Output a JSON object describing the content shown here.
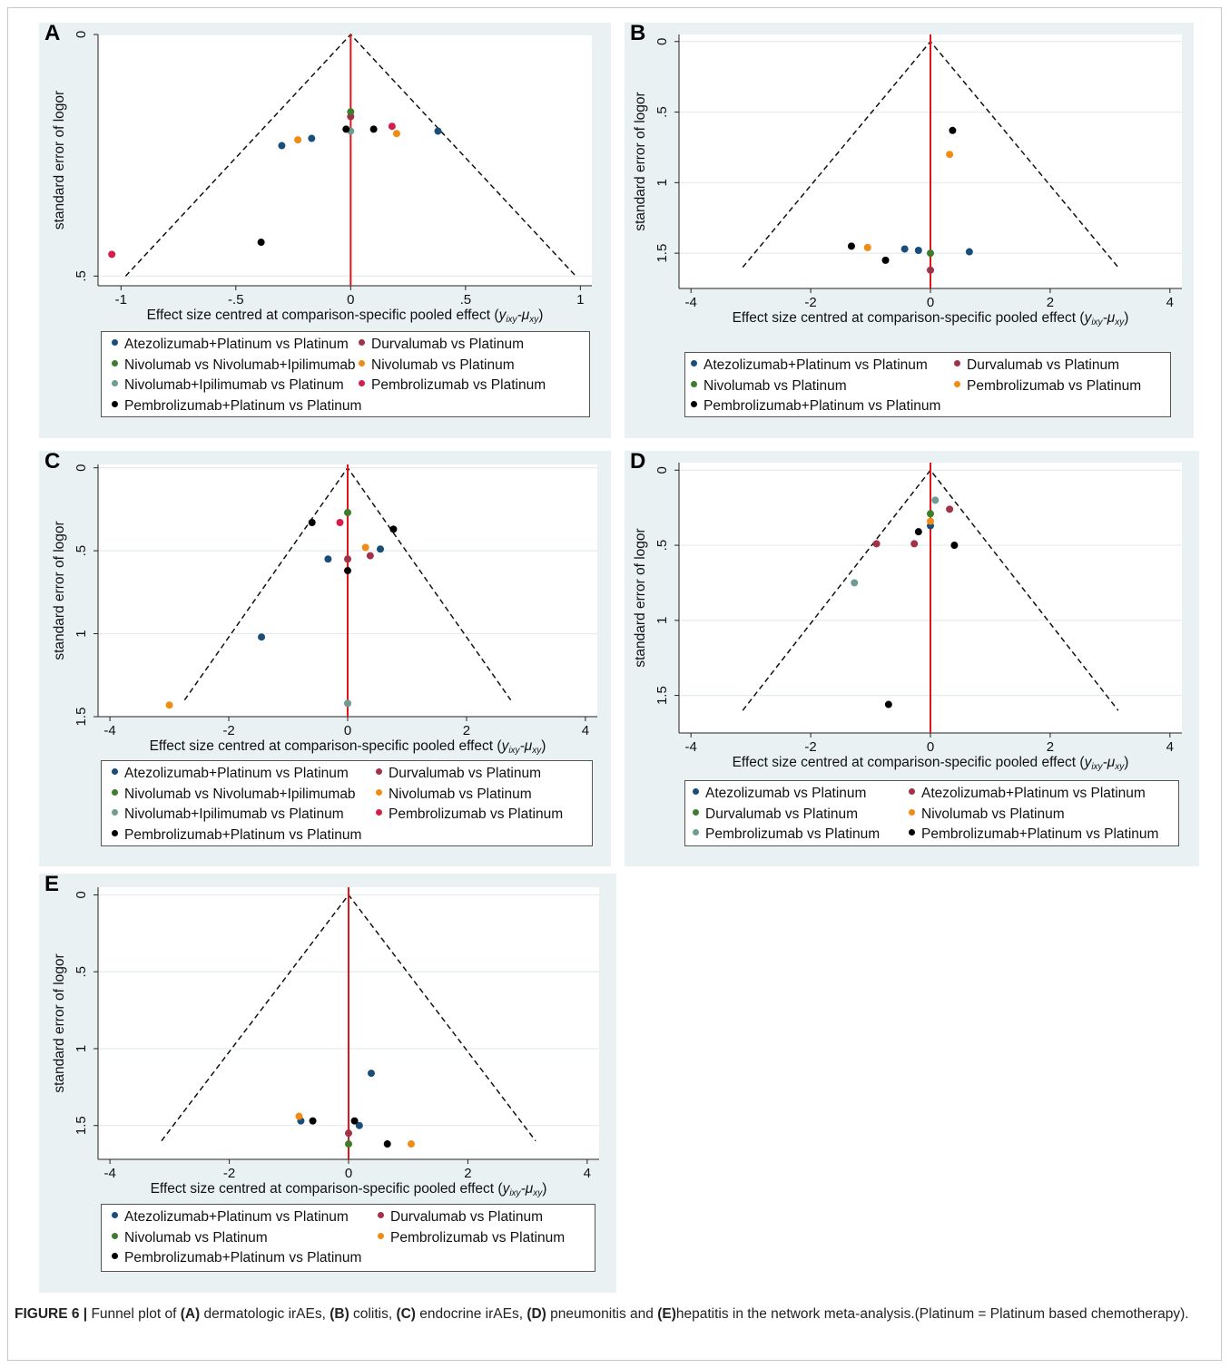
{
  "figure": {
    "caption_label": "FIGURE 6 |",
    "caption_segments": [
      {
        "t": " Funnel plot of ",
        "b": false
      },
      {
        "t": "(A)",
        "b": true
      },
      {
        "t": " dermatologic irAEs, ",
        "b": false
      },
      {
        "t": "(B)",
        "b": true
      },
      {
        "t": " colitis, ",
        "b": false
      },
      {
        "t": "(C)",
        "b": true
      },
      {
        "t": " endocrine irAEs, ",
        "b": false
      },
      {
        "t": "(D)",
        "b": true
      },
      {
        "t": " pneumonitis and ",
        "b": false
      },
      {
        "t": "(E)",
        "b": true
      },
      {
        "t": "hepatitis in the network meta-analysis.(Platinum = Platinum based chemotherapy).",
        "b": false
      }
    ]
  },
  "colors": {
    "navy": "#1a4e7a",
    "maroon": "#a23247",
    "green": "#3c7d2e",
    "orange": "#f08c14",
    "teal": "#6e9c94",
    "crimson": "#d41f4a",
    "black": "#000000",
    "panel_bg": "#e9f1f3",
    "red_line": "#e0161b"
  },
  "chart_data": [
    {
      "panel": "A",
      "type": "scatter",
      "ylabel": "standard error of logor",
      "xlabel_main": "Effect size centred at comparison-specific pooled effect (",
      "xlabel_math": "y",
      "xlabel_sub": "ixy",
      "xlabel_mid": "-μ",
      "xlabel_sub2": "xy",
      "xlabel_end": ")",
      "xlim": [
        -1.1,
        1.05
      ],
      "ylim": [
        0,
        0.52
      ],
      "y_reversed": true,
      "xticks": [
        "-1",
        "-.5",
        "0",
        ".5",
        "1"
      ],
      "xtick_values": [
        -1,
        -0.5,
        0,
        0.5,
        1
      ],
      "yticks": [
        "0",
        ".5"
      ],
      "ytick_values": [
        0,
        0.5
      ],
      "funnel_se_max": 0.5,
      "series": [
        {
          "name": "Atezolizumab+Platinum vs Platinum",
          "color": "navy",
          "points": [
            [
              -0.3,
              0.23
            ],
            [
              -0.17,
              0.215
            ],
            [
              0.38,
              0.2
            ]
          ]
        },
        {
          "name": "Durvalumab vs Platinum",
          "color": "maroon",
          "points": [
            [
              0.0,
              0.17
            ]
          ]
        },
        {
          "name": "Nivolumab vs Nivolumab+Ipilimumab",
          "color": "green",
          "points": [
            [
              0.0,
              0.16
            ]
          ]
        },
        {
          "name": "Nivolumab vs Platinum",
          "color": "orange",
          "points": [
            [
              -0.23,
              0.218
            ],
            [
              0.2,
              0.205
            ]
          ]
        },
        {
          "name": "Nivolumab+Ipilimumab vs Platinum",
          "color": "teal",
          "points": [
            [
              0.0,
              0.2
            ]
          ]
        },
        {
          "name": "Pembrolizumab vs Platinum",
          "color": "crimson",
          "points": [
            [
              0.18,
              0.19
            ],
            [
              -1.04,
              0.455
            ]
          ]
        },
        {
          "name": "Pembrolizumab+Platinum vs Platinum",
          "color": "black",
          "points": [
            [
              -0.02,
              0.196
            ],
            [
              0.1,
              0.196
            ],
            [
              -0.39,
              0.43
            ]
          ]
        }
      ]
    },
    {
      "panel": "B",
      "type": "scatter",
      "ylabel": "standard error of logor",
      "xlabel_main": "Effect size centred at comparison-specific pooled effect (",
      "xlabel_math": "y",
      "xlabel_sub": "ixy",
      "xlabel_mid": "-μ",
      "xlabel_sub2": "xy",
      "xlabel_end": ")",
      "xlim": [
        -4.2,
        4.2
      ],
      "ylim": [
        -0.05,
        1.75
      ],
      "y_reversed": true,
      "xticks": [
        "-4",
        "-2",
        "0",
        "2",
        "4"
      ],
      "xtick_values": [
        -4,
        -2,
        0,
        2,
        4
      ],
      "yticks": [
        "0",
        ".5",
        "1",
        "1.5"
      ],
      "ytick_values": [
        0,
        0.5,
        1,
        1.5
      ],
      "funnel_se_max": 1.6,
      "series": [
        {
          "name": "Atezolizumab+Platinum vs Platinum",
          "color": "navy",
          "points": [
            [
              -0.43,
              1.47
            ],
            [
              -0.2,
              1.48
            ],
            [
              0.65,
              1.49
            ]
          ]
        },
        {
          "name": "Durvalumab vs Platinum",
          "color": "maroon",
          "points": [
            [
              0.0,
              1.62
            ]
          ]
        },
        {
          "name": "Nivolumab vs Platinum",
          "color": "green",
          "points": [
            [
              0.0,
              1.5
            ]
          ]
        },
        {
          "name": "Pembrolizumab vs Platinum",
          "color": "orange",
          "points": [
            [
              0.32,
              0.8
            ],
            [
              -1.05,
              1.46
            ]
          ]
        },
        {
          "name": "Pembrolizumab+Platinum vs Platinum",
          "color": "black",
          "points": [
            [
              0.37,
              0.63
            ],
            [
              -1.32,
              1.45
            ],
            [
              -0.75,
              1.55
            ]
          ]
        }
      ]
    },
    {
      "panel": "C",
      "type": "scatter",
      "ylabel": "standard error of logor",
      "xlabel_main": "Effect size centred at comparison-specific pooled effect (",
      "xlabel_math": "y",
      "xlabel_sub": "ixy",
      "xlabel_mid": "-μ",
      "xlabel_sub2": "xy",
      "xlabel_end": ")",
      "xlim": [
        -4.2,
        4.2
      ],
      "ylim": [
        -0.02,
        1.5
      ],
      "y_reversed": true,
      "xticks": [
        "-4",
        "-2",
        "0",
        "2",
        "4"
      ],
      "xtick_values": [
        -4,
        -2,
        0,
        2,
        4
      ],
      "yticks": [
        "0",
        ".5",
        "1",
        "1.5"
      ],
      "ytick_values": [
        0,
        0.5,
        1,
        1.5
      ],
      "funnel_se_max": 1.4,
      "series": [
        {
          "name": "Atezolizumab+Platinum vs Platinum",
          "color": "navy",
          "points": [
            [
              0.55,
              0.49
            ],
            [
              -0.33,
              0.55
            ],
            [
              -1.45,
              1.02
            ]
          ]
        },
        {
          "name": "Durvalumab vs Platinum",
          "color": "maroon",
          "points": [
            [
              0.38,
              0.53
            ],
            [
              0.0,
              0.55
            ]
          ]
        },
        {
          "name": "Nivolumab vs Nivolumab+Ipilimumab",
          "color": "green",
          "points": [
            [
              0.0,
              0.27
            ]
          ]
        },
        {
          "name": "Nivolumab vs Platinum",
          "color": "orange",
          "points": [
            [
              0.3,
              0.48
            ],
            [
              -3.0,
              1.43
            ]
          ]
        },
        {
          "name": "Nivolumab+Ipilimumab vs Platinum",
          "color": "teal",
          "points": [
            [
              0.0,
              1.42
            ]
          ]
        },
        {
          "name": "Pembrolizumab vs Platinum",
          "color": "crimson",
          "points": [
            [
              -0.13,
              0.33
            ]
          ]
        },
        {
          "name": "Pembrolizumab+Platinum vs Platinum",
          "color": "black",
          "points": [
            [
              -0.6,
              0.33
            ],
            [
              0.77,
              0.37
            ],
            [
              0.0,
              0.62
            ]
          ]
        }
      ]
    },
    {
      "panel": "D",
      "type": "scatter",
      "ylabel": "standard error of logor",
      "xlabel_main": "Effect size centred at comparison-specific pooled effect (",
      "xlabel_math": "y",
      "xlabel_sub": "ixy",
      "xlabel_mid": "-μ",
      "xlabel_sub2": "xy",
      "xlabel_end": ")",
      "xlim": [
        -4.2,
        4.2
      ],
      "ylim": [
        -0.05,
        1.75
      ],
      "y_reversed": true,
      "xticks": [
        "-4",
        "-2",
        "0",
        "2",
        "4"
      ],
      "xtick_values": [
        -4,
        -2,
        0,
        2,
        4
      ],
      "yticks": [
        "0",
        ".5",
        "1",
        "1.5"
      ],
      "ytick_values": [
        0,
        0.5,
        1,
        1.5
      ],
      "funnel_se_max": 1.6,
      "series": [
        {
          "name": "Atezolizumab vs Platinum",
          "color": "navy",
          "points": [
            [
              0.0,
              0.37
            ]
          ]
        },
        {
          "name": "Atezolizumab+Platinum vs Platinum",
          "color": "maroon",
          "points": [
            [
              0.32,
              0.26
            ],
            [
              -0.9,
              0.49
            ],
            [
              -0.27,
              0.49
            ]
          ]
        },
        {
          "name": "Durvalumab vs Platinum",
          "color": "green",
          "points": [
            [
              0.0,
              0.29
            ]
          ]
        },
        {
          "name": "Nivolumab vs Platinum",
          "color": "orange",
          "points": [
            [
              0.0,
              0.34
            ]
          ]
        },
        {
          "name": "Pembrolizumab vs Platinum",
          "color": "teal",
          "points": [
            [
              0.08,
              0.2
            ],
            [
              -1.27,
              0.75
            ]
          ]
        },
        {
          "name": "Pembrolizumab+Platinum vs Platinum",
          "color": "black",
          "points": [
            [
              -0.2,
              0.41
            ],
            [
              0.4,
              0.5
            ],
            [
              -0.7,
              1.56
            ]
          ]
        }
      ]
    },
    {
      "panel": "E",
      "type": "scatter",
      "ylabel": "standard error of logor",
      "xlabel_main": "Effect size centred at comparison-specific pooled effect (",
      "xlabel_math": "y",
      "xlabel_sub": "ixy",
      "xlabel_mid": "-μ",
      "xlabel_sub2": "xy",
      "xlabel_end": ")",
      "xlim": [
        -4.2,
        4.2
      ],
      "ylim": [
        -0.05,
        1.72
      ],
      "y_reversed": true,
      "xticks": [
        "-4",
        "-2",
        "0",
        "2",
        "4"
      ],
      "xtick_values": [
        -4,
        -2,
        0,
        2,
        4
      ],
      "yticks": [
        "0",
        ".5",
        "1",
        "1.5"
      ],
      "ytick_values": [
        0,
        0.5,
        1,
        1.5
      ],
      "funnel_se_max": 1.6,
      "series": [
        {
          "name": "Atezolizumab+Platinum vs Platinum",
          "color": "navy",
          "points": [
            [
              0.38,
              1.16
            ],
            [
              -0.8,
              1.47
            ],
            [
              0.18,
              1.5
            ]
          ]
        },
        {
          "name": "Durvalumab vs Platinum",
          "color": "maroon",
          "points": [
            [
              0.0,
              1.55
            ]
          ]
        },
        {
          "name": "Nivolumab vs Platinum",
          "color": "green",
          "points": [
            [
              0.0,
              1.62
            ]
          ]
        },
        {
          "name": "Pembrolizumab vs Platinum",
          "color": "orange",
          "points": [
            [
              -0.83,
              1.44
            ],
            [
              1.05,
              1.62
            ]
          ]
        },
        {
          "name": "Pembrolizumab+Platinum vs Platinum",
          "color": "black",
          "points": [
            [
              -0.6,
              1.47
            ],
            [
              0.1,
              1.47
            ],
            [
              0.65,
              1.62
            ]
          ]
        }
      ]
    }
  ]
}
